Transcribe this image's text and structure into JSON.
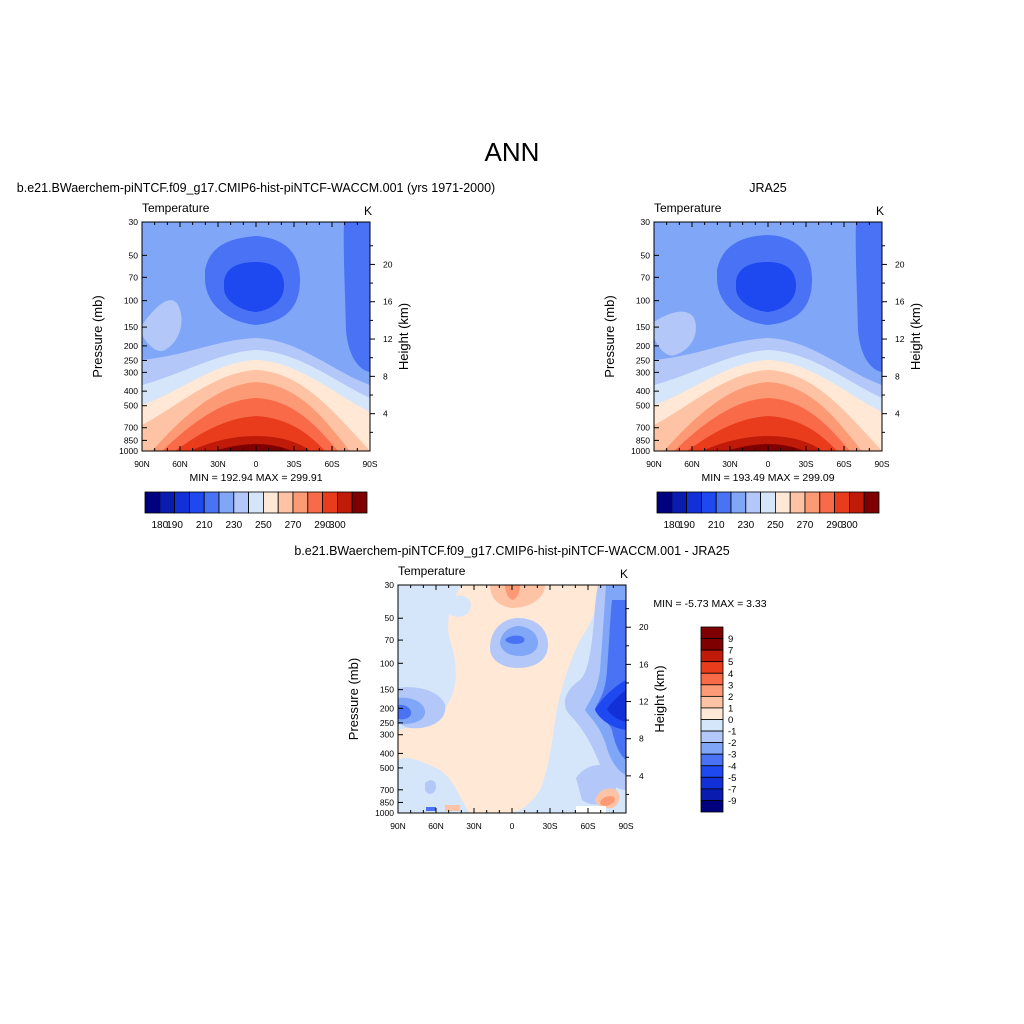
{
  "page_title": "ANN",
  "chart_data": [
    {
      "type": "contour",
      "title": "b.e21.BWaerchem-piNTCF.f09_g17.CMIP6-hist-piNTCF-WACCM.001 (yrs 1971-2000)",
      "left_string": "Temperature",
      "right_string": "K",
      "xlabel": "",
      "ylabel": "Pressure (mb)",
      "ylabel_right": "Height (km)",
      "x_ticks": [
        "90N",
        "60N",
        "30N",
        "0",
        "30S",
        "60S",
        "90S"
      ],
      "y_ticks": [
        30,
        50,
        70,
        100,
        150,
        200,
        250,
        300,
        400,
        500,
        700,
        850,
        1000
      ],
      "y_ticks_right": [
        4,
        8,
        12,
        16,
        20
      ],
      "ylim": [
        1000,
        30
      ],
      "min_max_label": "MIN = 192.94  MAX = 299.91",
      "min": 192.94,
      "max": 299.91,
      "colorbar_levels": [
        180,
        190,
        200,
        210,
        220,
        230,
        240,
        250,
        260,
        270,
        280,
        290,
        300
      ],
      "colorbar_labels": [
        "180",
        "190",
        "210",
        "230",
        "250",
        "270",
        "290",
        "300"
      ]
    },
    {
      "type": "contour",
      "title": "JRA25",
      "left_string": "Temperature",
      "right_string": "K",
      "xlabel": "",
      "ylabel": "Pressure (mb)",
      "ylabel_right": "Height (km)",
      "x_ticks": [
        "90N",
        "60N",
        "30N",
        "0",
        "30S",
        "60S",
        "90S"
      ],
      "y_ticks": [
        30,
        50,
        70,
        100,
        150,
        200,
        250,
        300,
        400,
        500,
        700,
        850,
        1000
      ],
      "y_ticks_right": [
        4,
        8,
        12,
        16,
        20
      ],
      "ylim": [
        1000,
        30
      ],
      "min_max_label": "MIN = 193.49  MAX = 299.09",
      "min": 193.49,
      "max": 299.09,
      "colorbar_levels": [
        180,
        190,
        200,
        210,
        220,
        230,
        240,
        250,
        260,
        270,
        280,
        290,
        300
      ],
      "colorbar_labels": [
        "180",
        "190",
        "210",
        "230",
        "250",
        "270",
        "290",
        "300"
      ]
    },
    {
      "type": "contour",
      "title": "b.e21.BWaerchem-piNTCF.f09_g17.CMIP6-hist-piNTCF-WACCM.001 - JRA25",
      "left_string": "Temperature",
      "right_string": "K",
      "xlabel": "",
      "ylabel": "Pressure (mb)",
      "ylabel_right": "Height (km)",
      "x_ticks": [
        "90N",
        "60N",
        "30N",
        "0",
        "30S",
        "60S",
        "90S"
      ],
      "y_ticks": [
        30,
        50,
        70,
        100,
        150,
        200,
        250,
        300,
        400,
        500,
        700,
        850,
        1000
      ],
      "y_ticks_right": [
        4,
        8,
        12,
        16,
        20
      ],
      "ylim": [
        1000,
        30
      ],
      "min_max_label": "MIN =  -5.73  MAX =   3.33",
      "min": -5.73,
      "max": 3.33,
      "colorbar_levels": [
        -9,
        -7,
        -5,
        -4,
        -3,
        -2,
        -1,
        0,
        1,
        2,
        3,
        4,
        5,
        7,
        9
      ],
      "colorbar_labels": [
        "-9",
        "-7",
        "-5",
        "-4",
        "-3",
        "-2",
        "-1",
        "0",
        "1",
        "2",
        "3",
        "4",
        "5",
        "7",
        "9"
      ]
    }
  ],
  "colors": {
    "abs_scale": [
      "#00007f",
      "#0a1cb0",
      "#1230d8",
      "#1e48f0",
      "#4a72f4",
      "#80a6f8",
      "#b3c8f8",
      "#d6e6fa",
      "#ffe8d6",
      "#fdc3a4",
      "#fc9a76",
      "#f86a48",
      "#e83c1c",
      "#c01a08",
      "#7f0000"
    ],
    "diff_scale": [
      "#00007f",
      "#0a1cb0",
      "#1230d8",
      "#1e48f0",
      "#4a72f4",
      "#80a6f8",
      "#b3c8f8",
      "#d6e6fa",
      "#ffe8d6",
      "#fdc3a4",
      "#fc9a76",
      "#f86a48",
      "#e83c1c",
      "#c01a08",
      "#7f0000",
      "#7f0000"
    ]
  }
}
